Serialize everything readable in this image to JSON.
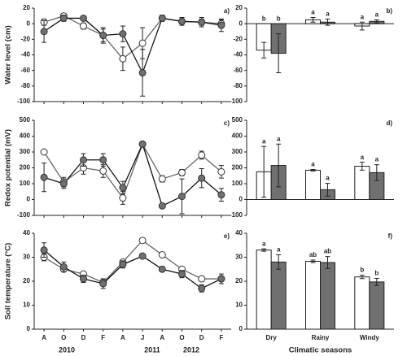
{
  "chart_data": [
    {
      "type": "line",
      "label": "a)",
      "ylabel": "Water level (cm)",
      "ylim": [
        -100,
        20
      ],
      "yticks": [
        -100,
        -80,
        -60,
        -40,
        -20,
        0,
        20
      ],
      "series": [
        {
          "color": "#ffffff",
          "line_color": "#666666",
          "values": [
            2,
            10,
            -3,
            -15,
            -45,
            -25,
            7,
            3,
            2,
            0
          ],
          "errors": [
            4,
            3,
            4,
            8,
            15,
            20,
            3,
            3,
            4,
            5
          ]
        },
        {
          "color": "#707070",
          "line_color": "#111111",
          "values": [
            -10,
            7,
            7,
            -15,
            -13,
            -63,
            7,
            3,
            2,
            -2
          ],
          "errors": [
            14,
            4,
            3,
            10,
            10,
            30,
            4,
            5,
            6,
            8
          ]
        }
      ]
    },
    {
      "type": "bar",
      "label": "b)",
      "ylim": [
        -100,
        20
      ],
      "yticks": [
        -100,
        -80,
        -60,
        -40,
        -20,
        0,
        20
      ],
      "series": [
        {
          "color": "#ffffff",
          "values": [
            -34,
            5,
            -3
          ],
          "errors": [
            10,
            3,
            5
          ],
          "letters": [
            "b",
            "a",
            "a"
          ]
        },
        {
          "color": "#707070",
          "values": [
            -38,
            2,
            3
          ],
          "errors": [
            25,
            4,
            2
          ],
          "letters": [
            "b",
            "a",
            "a"
          ]
        }
      ]
    },
    {
      "type": "line",
      "label": "c)",
      "ylabel": "Redox potential (mV)",
      "ylim": [
        -100,
        500
      ],
      "yticks": [
        -100,
        0,
        100,
        200,
        300,
        400,
        500
      ],
      "series": [
        {
          "color": "#ffffff",
          "line_color": "#666666",
          "values": [
            300,
            110,
            200,
            180,
            10,
            350,
            130,
            170,
            280,
            175
          ],
          "errors": [
            15,
            30,
            40,
            40,
            40,
            10,
            20,
            20,
            25,
            40
          ]
        },
        {
          "color": "#707070",
          "line_color": "#111111",
          "values": [
            140,
            100,
            250,
            250,
            75,
            350,
            -40,
            20,
            135,
            30
          ],
          "errors": [
            90,
            30,
            40,
            40,
            40,
            10,
            10,
            110,
            60,
            40
          ]
        }
      ]
    },
    {
      "type": "bar",
      "label": "d)",
      "ylim": [
        -100,
        500
      ],
      "yticks": [
        -100,
        0,
        100,
        200,
        300,
        400,
        500
      ],
      "series": [
        {
          "color": "#ffffff",
          "values": [
            175,
            185,
            210
          ],
          "errors": [
            160,
            5,
            25
          ],
          "letters": [
            "a",
            "a",
            "a"
          ]
        },
        {
          "color": "#707070",
          "values": [
            215,
            62,
            170
          ],
          "errors": [
            135,
            40,
            50
          ],
          "letters": [
            "a",
            "a",
            "a"
          ]
        }
      ]
    },
    {
      "type": "line",
      "label": "e)",
      "ylabel": "Soil temperature (°C)",
      "ylim": [
        0,
        40
      ],
      "yticks": [
        0,
        10,
        20,
        30,
        40
      ],
      "categories": [
        "A",
        "O",
        "D",
        "F",
        "A",
        "J",
        "A",
        "O",
        "D",
        "F"
      ],
      "year_labels": [
        "2010",
        "2011",
        "2012"
      ],
      "series": [
        {
          "color": "#ffffff",
          "line_color": "#666666",
          "values": [
            30,
            25,
            23,
            19.5,
            28,
            37,
            31,
            25,
            21,
            21
          ],
          "errors": [
            1.5,
            1,
            1,
            1.5,
            1,
            0.8,
            0.8,
            0.8,
            1,
            1
          ]
        },
        {
          "color": "#707070",
          "line_color": "#111111",
          "values": [
            33,
            26,
            21,
            19,
            27,
            30.5,
            25,
            23,
            17,
            21
          ],
          "errors": [
            3,
            2,
            1.5,
            2,
            1.5,
            1,
            1,
            1.5,
            1.5,
            2
          ]
        }
      ]
    },
    {
      "type": "bar",
      "label": "f)",
      "xlabel": "Climatic seasons",
      "ylim": [
        0,
        40
      ],
      "yticks": [
        0,
        10,
        20,
        30,
        40
      ],
      "categories": [
        "Dry",
        "Rainy",
        "Windy"
      ],
      "series": [
        {
          "color": "#ffffff",
          "values": [
            33,
            28.3,
            21.8
          ],
          "errors": [
            0.5,
            0.5,
            0.7
          ],
          "letters": [
            "a",
            "ab",
            "b"
          ]
        },
        {
          "color": "#707070",
          "values": [
            28,
            27.8,
            19.7
          ],
          "errors": [
            3,
            2.5,
            1.5
          ],
          "letters": [
            "a",
            "ab",
            "b"
          ]
        }
      ]
    }
  ]
}
